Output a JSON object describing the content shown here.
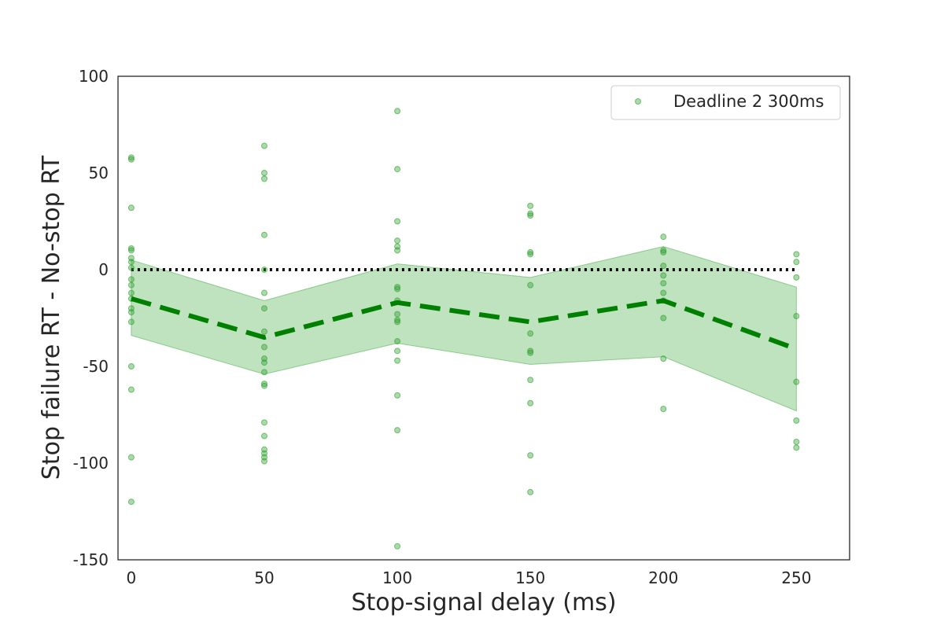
{
  "chart_data": {
    "type": "scatter",
    "title": "",
    "xlabel": "Stop-signal delay (ms)",
    "ylabel": "Stop failure RT - No-stop RT",
    "xlim": [
      -5,
      270
    ],
    "ylim": [
      -150,
      100
    ],
    "x_ticks": [
      0,
      50,
      100,
      150,
      200,
      250
    ],
    "y_ticks": [
      100,
      50,
      0,
      -50,
      -100,
      -150
    ],
    "grid": false,
    "legend": {
      "placement": "top-right",
      "entries": [
        "Deadline 2 300ms"
      ]
    },
    "colors": {
      "points": "#2ca02c",
      "mean_line": "#008000",
      "band": "#2ca02c",
      "reference_line": "#000000",
      "axes": "#262626"
    },
    "series": [
      {
        "name": "Deadline 2 300ms",
        "kind": "scatter",
        "points": [
          {
            "x": 0,
            "y": 58
          },
          {
            "x": 0,
            "y": 57
          },
          {
            "x": 0,
            "y": 32
          },
          {
            "x": 0,
            "y": 11
          },
          {
            "x": 0,
            "y": 10
          },
          {
            "x": 0,
            "y": 6
          },
          {
            "x": 0,
            "y": 4
          },
          {
            "x": 0,
            "y": 1
          },
          {
            "x": 0,
            "y": -5
          },
          {
            "x": 0,
            "y": -8
          },
          {
            "x": 0,
            "y": -12
          },
          {
            "x": 0,
            "y": -15
          },
          {
            "x": 0,
            "y": -20
          },
          {
            "x": 0,
            "y": -22
          },
          {
            "x": 0,
            "y": -27
          },
          {
            "x": 0,
            "y": -50
          },
          {
            "x": 0,
            "y": -62
          },
          {
            "x": 0,
            "y": -97
          },
          {
            "x": 0,
            "y": -120
          },
          {
            "x": 50,
            "y": 64
          },
          {
            "x": 50,
            "y": 50
          },
          {
            "x": 50,
            "y": 47
          },
          {
            "x": 50,
            "y": 18
          },
          {
            "x": 50,
            "y": 0
          },
          {
            "x": 50,
            "y": -12
          },
          {
            "x": 50,
            "y": -20
          },
          {
            "x": 50,
            "y": -32
          },
          {
            "x": 50,
            "y": -40
          },
          {
            "x": 50,
            "y": -46
          },
          {
            "x": 50,
            "y": -48
          },
          {
            "x": 50,
            "y": -53
          },
          {
            "x": 50,
            "y": -59
          },
          {
            "x": 50,
            "y": -60
          },
          {
            "x": 50,
            "y": -79
          },
          {
            "x": 50,
            "y": -86
          },
          {
            "x": 50,
            "y": -93
          },
          {
            "x": 50,
            "y": -95
          },
          {
            "x": 50,
            "y": -97
          },
          {
            "x": 50,
            "y": -99
          },
          {
            "x": 100,
            "y": 82
          },
          {
            "x": 100,
            "y": 52
          },
          {
            "x": 100,
            "y": 25
          },
          {
            "x": 100,
            "y": 15
          },
          {
            "x": 100,
            "y": 12
          },
          {
            "x": 100,
            "y": 10
          },
          {
            "x": 100,
            "y": -9
          },
          {
            "x": 100,
            "y": -10
          },
          {
            "x": 100,
            "y": -16
          },
          {
            "x": 100,
            "y": -23
          },
          {
            "x": 100,
            "y": -26
          },
          {
            "x": 100,
            "y": -27
          },
          {
            "x": 100,
            "y": -37
          },
          {
            "x": 100,
            "y": -42
          },
          {
            "x": 100,
            "y": -47
          },
          {
            "x": 100,
            "y": -65
          },
          {
            "x": 100,
            "y": -83
          },
          {
            "x": 100,
            "y": -143
          },
          {
            "x": 150,
            "y": 33
          },
          {
            "x": 150,
            "y": 29
          },
          {
            "x": 150,
            "y": 28
          },
          {
            "x": 150,
            "y": 9
          },
          {
            "x": 150,
            "y": 8
          },
          {
            "x": 150,
            "y": -8
          },
          {
            "x": 150,
            "y": -33
          },
          {
            "x": 150,
            "y": -42
          },
          {
            "x": 150,
            "y": -43
          },
          {
            "x": 150,
            "y": -57
          },
          {
            "x": 150,
            "y": -69
          },
          {
            "x": 150,
            "y": -96
          },
          {
            "x": 150,
            "y": -115
          },
          {
            "x": 200,
            "y": 17
          },
          {
            "x": 200,
            "y": 10
          },
          {
            "x": 200,
            "y": 9
          },
          {
            "x": 200,
            "y": 2
          },
          {
            "x": 200,
            "y": -3
          },
          {
            "x": 200,
            "y": -7
          },
          {
            "x": 200,
            "y": -12
          },
          {
            "x": 200,
            "y": -16
          },
          {
            "x": 200,
            "y": -25
          },
          {
            "x": 200,
            "y": -46
          },
          {
            "x": 200,
            "y": -72
          },
          {
            "x": 250,
            "y": 8
          },
          {
            "x": 250,
            "y": 4
          },
          {
            "x": 250,
            "y": -4
          },
          {
            "x": 250,
            "y": -24
          },
          {
            "x": 250,
            "y": -58
          },
          {
            "x": 250,
            "y": -78
          },
          {
            "x": 250,
            "y": -89
          },
          {
            "x": 250,
            "y": -92
          }
        ]
      },
      {
        "kind": "mean_line",
        "style": "dashed",
        "x": [
          0,
          50,
          100,
          150,
          200,
          250
        ],
        "y": [
          -15,
          -35,
          -17,
          -27,
          -16,
          -41
        ]
      },
      {
        "kind": "confidence_band",
        "x": [
          0,
          50,
          100,
          150,
          200,
          250
        ],
        "lower": [
          -34,
          -54,
          -38,
          -49,
          -45,
          -73
        ],
        "upper": [
          5,
          -16,
          3,
          -4,
          12,
          -9
        ]
      },
      {
        "kind": "reference_line",
        "style": "dotted",
        "x": [
          0,
          250
        ],
        "y": [
          0,
          0
        ]
      }
    ]
  }
}
